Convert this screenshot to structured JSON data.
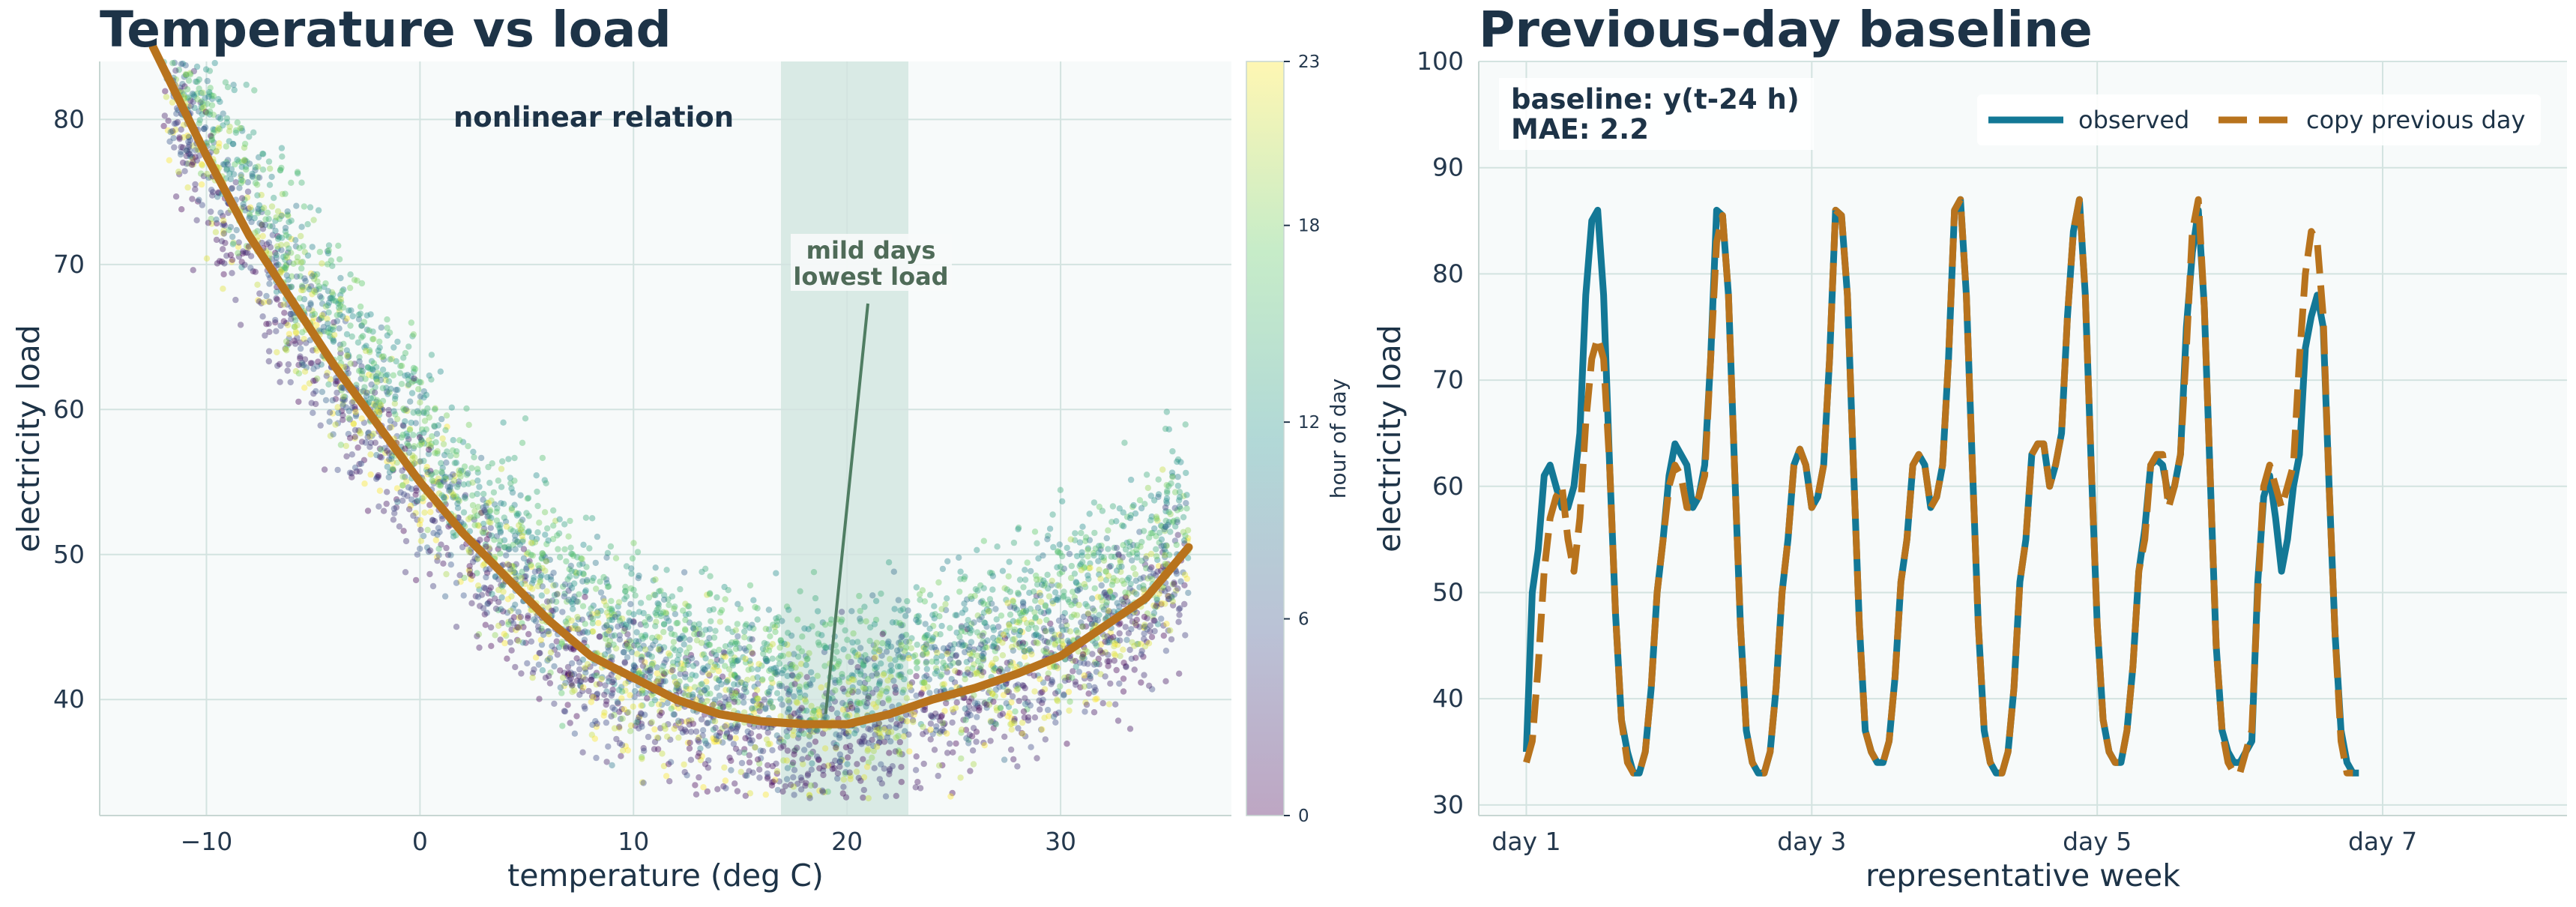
{
  "colors": {
    "title": "#1d3347",
    "tick": "#24384d",
    "grid": "#d3e3e0",
    "panel": "#f7fafa",
    "observed": "#137896",
    "baseline": "#b8731d",
    "fit": "#b8731d",
    "mild_band": "#cfe4dd",
    "mild_text": "#4f6b58",
    "annotation_line": "#4f7d62"
  },
  "chart_data": [
    {
      "type": "scatter",
      "title": "Temperature vs load",
      "xlabel": "temperature (deg C)",
      "ylabel": "electricity load",
      "xlim": [
        -15,
        38
      ],
      "ylim": [
        32,
        84
      ],
      "xticks": [
        -10,
        0,
        10,
        20,
        30
      ],
      "yticks": [
        40,
        50,
        60,
        70,
        80
      ],
      "grid": true,
      "annotation_top": "nonlinear relation",
      "annotation_mild": [
        "mild days",
        "lowest load"
      ],
      "mild_band": [
        17,
        23
      ],
      "mild_arrow_target": {
        "x": 19,
        "y": 39
      },
      "colorbar": {
        "label": "hour of day",
        "range": [
          0,
          23
        ],
        "ticks": [
          0,
          6,
          12,
          18,
          23
        ],
        "colormap": "viridis"
      },
      "fit_curve": {
        "x": [
          -12.5,
          -10,
          -8,
          -6,
          -4,
          -2,
          0,
          2,
          4,
          6,
          8,
          10,
          12,
          14,
          16,
          18,
          20,
          22,
          24,
          26,
          28,
          30,
          32,
          34,
          36
        ],
        "y": [
          85,
          77.5,
          72,
          67.5,
          63,
          59,
          55,
          51.5,
          48.5,
          45.5,
          43,
          41.5,
          40,
          39,
          38.5,
          38.3,
          38.3,
          39,
          40,
          40.8,
          41.8,
          43,
          45,
          47,
          50.5
        ]
      },
      "points_note": [
        "approx. 5000 hourly observations from -12 to 36 deg C"
      ]
    },
    {
      "type": "line",
      "title": "Previous-day baseline",
      "xlabel": "representative week",
      "ylabel": "electricity load",
      "ylim": [
        29,
        100
      ],
      "yticks": [
        30,
        40,
        50,
        60,
        70,
        80,
        90,
        100
      ],
      "xticks": [
        {
          "value": 0,
          "label": "day 1"
        },
        {
          "value": 48,
          "label": "day 3"
        },
        {
          "value": 96,
          "label": "day 5"
        },
        {
          "value": 144,
          "label": "day 7"
        }
      ],
      "xlim": [
        -8,
        175
      ],
      "textbox": [
        "baseline: y(t-24 h)",
        "MAE: 2.2"
      ],
      "legend_position": "top-right",
      "series": [
        {
          "name": "observed",
          "style": "solid",
          "color": "#137896",
          "values": [
            35,
            50,
            54,
            61,
            62,
            60,
            58,
            58,
            60,
            65,
            78,
            85,
            86,
            78,
            62,
            48,
            38,
            35,
            33,
            33,
            35,
            41,
            50,
            55,
            61,
            64,
            63,
            62,
            58,
            59,
            62,
            72,
            86,
            85.5,
            78,
            62,
            47,
            37,
            34,
            33,
            33,
            35,
            41,
            50,
            55,
            62,
            63.5,
            62,
            58,
            59,
            62,
            72,
            86,
            85.5,
            78,
            62,
            47,
            37,
            35,
            34,
            34,
            36,
            42,
            51,
            55,
            62,
            63,
            62,
            58,
            59,
            62,
            72,
            86,
            87,
            78,
            62,
            47,
            37,
            34,
            33,
            33,
            35,
            41,
            51,
            55,
            63,
            64,
            64,
            60,
            62,
            65,
            76,
            84,
            87,
            78,
            62,
            47,
            38,
            35,
            34,
            34,
            37,
            43,
            52,
            56,
            62,
            62.5,
            62,
            59,
            60,
            63,
            75,
            82,
            86,
            77,
            61,
            45,
            37,
            35,
            34,
            34,
            35,
            36,
            51,
            59,
            61,
            57,
            52,
            55,
            60,
            63,
            73,
            76,
            78,
            75,
            60,
            46,
            37,
            34,
            33,
            33
          ]
        },
        {
          "name": "copy previous day",
          "style": "dashed",
          "color": "#b8731d",
          "values": [
            34,
            36,
            43,
            52,
            57,
            59,
            60,
            55,
            52,
            57,
            66,
            72,
            74,
            72,
            62,
            48,
            38,
            34,
            33,
            33,
            35,
            41,
            50,
            55,
            60,
            62,
            61,
            58,
            58,
            59,
            61,
            72,
            83,
            85.5,
            78,
            62,
            47,
            37,
            34,
            33,
            33,
            35,
            41,
            50,
            55,
            62,
            63.5,
            62,
            58,
            59,
            62,
            72,
            86,
            85.5,
            78,
            62,
            47,
            37,
            35,
            34,
            34,
            36,
            42,
            51,
            55,
            62,
            63,
            62,
            58,
            59,
            62,
            72,
            86,
            87,
            78,
            62,
            47,
            37,
            34,
            33,
            33,
            35,
            41,
            51,
            55,
            63,
            64,
            64,
            60,
            62,
            65,
            76,
            84,
            87,
            78,
            62,
            47,
            38,
            35,
            34,
            34,
            37,
            43,
            52,
            55,
            62,
            63,
            63,
            58,
            60,
            63,
            73,
            84,
            87,
            77,
            61,
            45,
            37,
            34,
            33,
            33,
            35,
            37,
            50,
            60,
            62,
            60,
            58,
            60,
            62,
            72,
            80,
            84,
            83,
            76,
            60,
            46,
            36,
            33,
            33
          ]
        }
      ]
    }
  ]
}
